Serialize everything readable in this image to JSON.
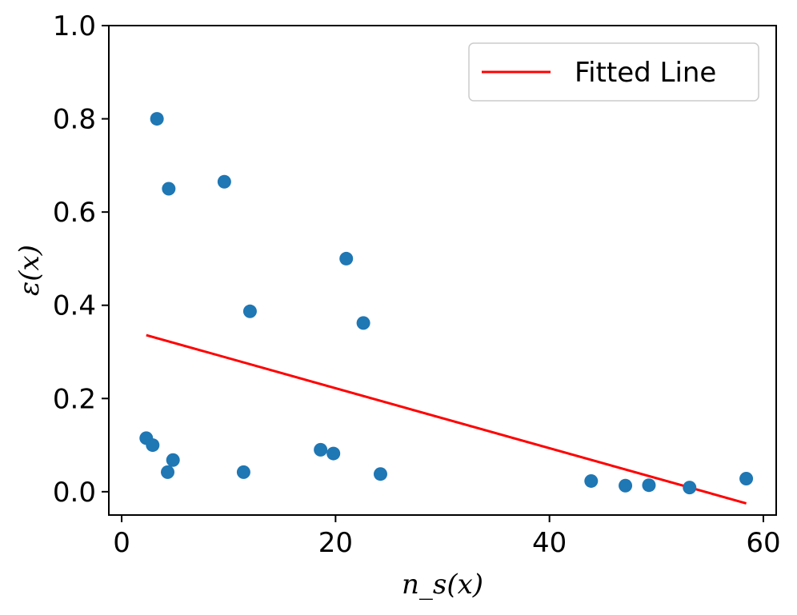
{
  "chart_data": {
    "type": "scatter",
    "title": "",
    "xlabel": "n_s(x)",
    "ylabel": "ε(x)",
    "xlim": [
      -1.2,
      61.2
    ],
    "ylim": [
      -0.05,
      1.0
    ],
    "xticks": [
      0,
      20,
      40,
      60
    ],
    "yticks": [
      0.0,
      0.2,
      0.4,
      0.6,
      0.8,
      1.0
    ],
    "xtick_labels": [
      "0",
      "20",
      "40",
      "60"
    ],
    "ytick_labels": [
      "0.0",
      "0.2",
      "0.4",
      "0.6",
      "0.8",
      "1.0"
    ],
    "grid": false,
    "legend": {
      "position": "upper-right",
      "entries": [
        {
          "label": "Fitted Line",
          "color": "#ff0000",
          "kind": "line"
        }
      ]
    },
    "series": [
      {
        "kind": "scatter",
        "color": "#1f77b4",
        "points": [
          {
            "x": 2.3,
            "y": 0.115
          },
          {
            "x": 2.9,
            "y": 0.1
          },
          {
            "x": 3.3,
            "y": 0.8
          },
          {
            "x": 4.3,
            "y": 0.042
          },
          {
            "x": 4.4,
            "y": 0.65
          },
          {
            "x": 4.8,
            "y": 0.068
          },
          {
            "x": 9.6,
            "y": 0.665
          },
          {
            "x": 11.4,
            "y": 0.042
          },
          {
            "x": 12.0,
            "y": 0.387
          },
          {
            "x": 18.6,
            "y": 0.09
          },
          {
            "x": 19.8,
            "y": 0.082
          },
          {
            "x": 21.0,
            "y": 0.5
          },
          {
            "x": 22.6,
            "y": 0.362
          },
          {
            "x": 24.2,
            "y": 0.038
          },
          {
            "x": 43.9,
            "y": 0.023
          },
          {
            "x": 47.1,
            "y": 0.013
          },
          {
            "x": 49.3,
            "y": 0.014
          },
          {
            "x": 53.1,
            "y": 0.009
          },
          {
            "x": 58.4,
            "y": 0.028
          }
        ]
      },
      {
        "kind": "line",
        "name": "Fitted Line",
        "color": "#ff0000",
        "points": [
          {
            "x": 2.3,
            "y": 0.336
          },
          {
            "x": 58.4,
            "y": -0.025
          }
        ]
      }
    ]
  }
}
